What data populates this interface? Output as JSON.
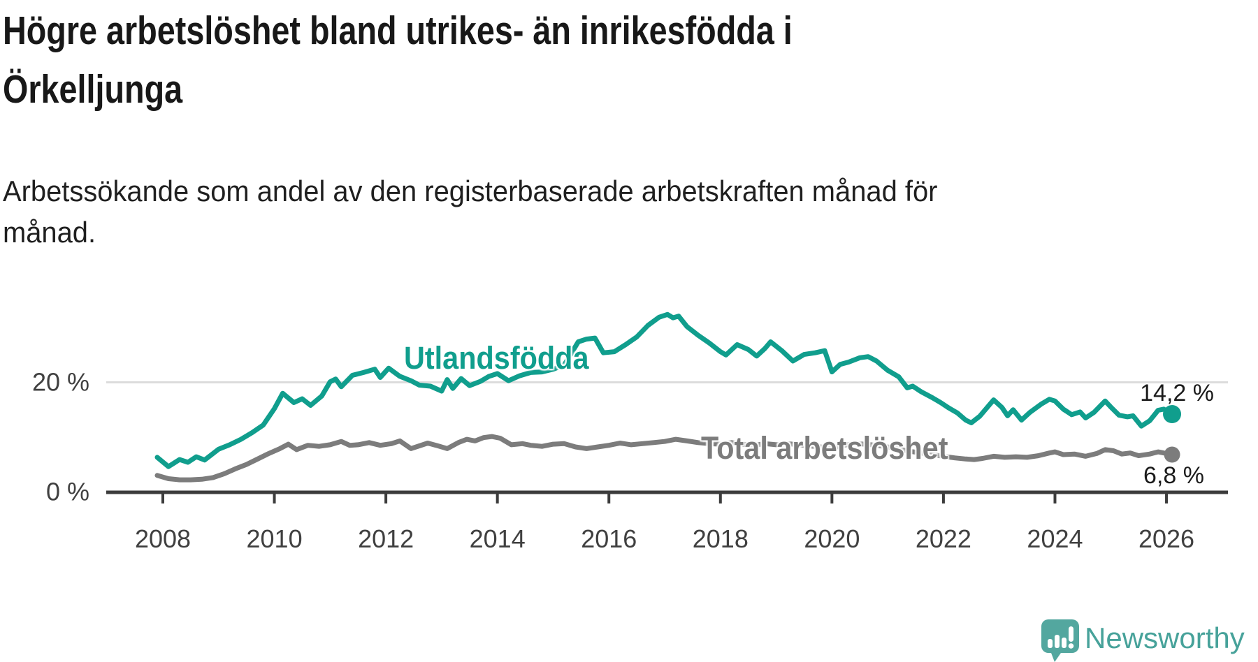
{
  "header": {
    "title_lines": [
      "Högre arbetslöshet bland utrikes- än inrikesfödda i",
      "Örkelljunga"
    ],
    "subtitle_lines": [
      "Arbetssökande som andel av den registerbaserade arbetskraften månad för",
      "månad."
    ]
  },
  "branding": {
    "logo_text": "Newsworthy",
    "logo_color": "#53A79F",
    "logo_text_color": "#47A29A"
  },
  "chart_data": {
    "type": "line",
    "title": "Högre arbetslöshet bland utrikes- än inrikesfödda i Örkelljunga",
    "subtitle": "Arbetssökande som andel av den registerbaserade arbetskraften månad för månad.",
    "xlabel": "",
    "ylabel": "",
    "unit": "%",
    "grid": "single-horizontal-at-20",
    "legend_position": "inline-labels",
    "x_axis": {
      "ticks": [
        2008,
        2010,
        2012,
        2014,
        2016,
        2018,
        2020,
        2022,
        2024,
        2026
      ],
      "range": [
        2007.9,
        2027.1
      ]
    },
    "y_axis": {
      "tick_labels": [
        "0 %",
        "20 %"
      ],
      "tick_values": [
        0,
        20
      ],
      "grid_value": 20,
      "range": [
        0,
        34
      ]
    },
    "colors": {
      "accent_teal": "#109E8D",
      "gray": "#7C7C7C",
      "axis": "#3C3C3C",
      "gridline": "#DCDCDC"
    },
    "series": [
      {
        "name": "Utlandsfödda",
        "color": "#109E8D",
        "end_label": "14,2 %",
        "end_value": 14.2,
        "points": [
          [
            2007.9,
            6.3
          ],
          [
            2008.1,
            4.6
          ],
          [
            2008.3,
            5.9
          ],
          [
            2008.45,
            5.4
          ],
          [
            2008.6,
            6.4
          ],
          [
            2008.75,
            5.8
          ],
          [
            2009.0,
            7.8
          ],
          [
            2009.2,
            8.6
          ],
          [
            2009.4,
            9.6
          ],
          [
            2009.6,
            10.8
          ],
          [
            2009.8,
            12.2
          ],
          [
            2010.0,
            15.2
          ],
          [
            2010.15,
            18.0
          ],
          [
            2010.35,
            16.3
          ],
          [
            2010.5,
            17.0
          ],
          [
            2010.65,
            15.8
          ],
          [
            2010.85,
            17.5
          ],
          [
            2011.0,
            20.1
          ],
          [
            2011.1,
            20.6
          ],
          [
            2011.2,
            19.2
          ],
          [
            2011.4,
            21.3
          ],
          [
            2011.6,
            21.8
          ],
          [
            2011.8,
            22.4
          ],
          [
            2011.9,
            20.9
          ],
          [
            2012.05,
            22.6
          ],
          [
            2012.25,
            21.1
          ],
          [
            2012.45,
            20.3
          ],
          [
            2012.6,
            19.5
          ],
          [
            2012.8,
            19.3
          ],
          [
            2013.0,
            18.4
          ],
          [
            2013.1,
            20.5
          ],
          [
            2013.2,
            18.9
          ],
          [
            2013.35,
            20.7
          ],
          [
            2013.5,
            19.4
          ],
          [
            2013.7,
            20.2
          ],
          [
            2013.85,
            21.1
          ],
          [
            2014.0,
            21.6
          ],
          [
            2014.2,
            20.3
          ],
          [
            2014.4,
            21.2
          ],
          [
            2014.6,
            21.8
          ],
          [
            2014.8,
            21.9
          ],
          [
            2015.0,
            22.4
          ],
          [
            2015.2,
            23.2
          ],
          [
            2015.45,
            27.4
          ],
          [
            2015.6,
            27.9
          ],
          [
            2015.75,
            28.1
          ],
          [
            2015.9,
            25.4
          ],
          [
            2016.1,
            25.6
          ],
          [
            2016.3,
            26.9
          ],
          [
            2016.5,
            28.3
          ],
          [
            2016.7,
            30.4
          ],
          [
            2016.9,
            31.9
          ],
          [
            2017.05,
            32.4
          ],
          [
            2017.15,
            31.8
          ],
          [
            2017.25,
            32.1
          ],
          [
            2017.4,
            30.2
          ],
          [
            2017.6,
            28.6
          ],
          [
            2017.8,
            27.2
          ],
          [
            2018.0,
            25.6
          ],
          [
            2018.1,
            25.0
          ],
          [
            2018.3,
            26.9
          ],
          [
            2018.5,
            26.0
          ],
          [
            2018.65,
            24.8
          ],
          [
            2018.8,
            26.2
          ],
          [
            2018.9,
            27.4
          ],
          [
            2019.1,
            25.8
          ],
          [
            2019.3,
            23.9
          ],
          [
            2019.5,
            25.1
          ],
          [
            2019.7,
            25.4
          ],
          [
            2019.87,
            25.8
          ],
          [
            2020.0,
            21.9
          ],
          [
            2020.15,
            23.3
          ],
          [
            2020.3,
            23.7
          ],
          [
            2020.5,
            24.5
          ],
          [
            2020.65,
            24.7
          ],
          [
            2020.8,
            23.9
          ],
          [
            2021.0,
            22.2
          ],
          [
            2021.2,
            21.0
          ],
          [
            2021.35,
            19.0
          ],
          [
            2021.45,
            19.3
          ],
          [
            2021.6,
            18.3
          ],
          [
            2021.8,
            17.2
          ],
          [
            2021.95,
            16.3
          ],
          [
            2022.1,
            15.3
          ],
          [
            2022.25,
            14.4
          ],
          [
            2022.4,
            13.1
          ],
          [
            2022.5,
            12.6
          ],
          [
            2022.65,
            13.8
          ],
          [
            2022.9,
            16.8
          ],
          [
            2023.05,
            15.4
          ],
          [
            2023.15,
            13.9
          ],
          [
            2023.25,
            15.0
          ],
          [
            2023.4,
            13.1
          ],
          [
            2023.55,
            14.5
          ],
          [
            2023.75,
            16.0
          ],
          [
            2023.9,
            16.9
          ],
          [
            2024.0,
            16.6
          ],
          [
            2024.15,
            15.1
          ],
          [
            2024.3,
            14.1
          ],
          [
            2024.45,
            14.6
          ],
          [
            2024.55,
            13.5
          ],
          [
            2024.7,
            14.5
          ],
          [
            2024.9,
            16.6
          ],
          [
            2025.0,
            15.5
          ],
          [
            2025.15,
            14.0
          ],
          [
            2025.3,
            13.7
          ],
          [
            2025.4,
            13.9
          ],
          [
            2025.55,
            12.0
          ],
          [
            2025.7,
            13.0
          ],
          [
            2025.85,
            14.9
          ],
          [
            2025.95,
            15.1
          ],
          [
            2026.1,
            14.2
          ]
        ]
      },
      {
        "name": "Total arbetslöshet",
        "color": "#7C7C7C",
        "end_label": "6,8 %",
        "end_value": 6.8,
        "points": [
          [
            2007.9,
            3.0
          ],
          [
            2008.1,
            2.4
          ],
          [
            2008.3,
            2.2
          ],
          [
            2008.5,
            2.2
          ],
          [
            2008.7,
            2.3
          ],
          [
            2008.9,
            2.6
          ],
          [
            2009.1,
            3.3
          ],
          [
            2009.3,
            4.2
          ],
          [
            2009.5,
            5.0
          ],
          [
            2009.7,
            6.0
          ],
          [
            2009.9,
            7.0
          ],
          [
            2010.1,
            7.9
          ],
          [
            2010.25,
            8.7
          ],
          [
            2010.4,
            7.7
          ],
          [
            2010.6,
            8.5
          ],
          [
            2010.8,
            8.3
          ],
          [
            2011.0,
            8.6
          ],
          [
            2011.2,
            9.2
          ],
          [
            2011.35,
            8.5
          ],
          [
            2011.5,
            8.6
          ],
          [
            2011.7,
            9.0
          ],
          [
            2011.9,
            8.5
          ],
          [
            2012.1,
            8.8
          ],
          [
            2012.25,
            9.3
          ],
          [
            2012.45,
            7.9
          ],
          [
            2012.6,
            8.4
          ],
          [
            2012.75,
            8.9
          ],
          [
            2012.9,
            8.5
          ],
          [
            2013.1,
            7.9
          ],
          [
            2013.3,
            9.0
          ],
          [
            2013.45,
            9.6
          ],
          [
            2013.6,
            9.3
          ],
          [
            2013.75,
            9.9
          ],
          [
            2013.9,
            10.1
          ],
          [
            2014.05,
            9.8
          ],
          [
            2014.25,
            8.6
          ],
          [
            2014.45,
            8.8
          ],
          [
            2014.6,
            8.5
          ],
          [
            2014.8,
            8.3
          ],
          [
            2015.0,
            8.7
          ],
          [
            2015.2,
            8.8
          ],
          [
            2015.4,
            8.2
          ],
          [
            2015.6,
            7.9
          ],
          [
            2015.8,
            8.2
          ],
          [
            2016.0,
            8.5
          ],
          [
            2016.2,
            8.9
          ],
          [
            2016.4,
            8.6
          ],
          [
            2016.6,
            8.8
          ],
          [
            2016.8,
            9.0
          ],
          [
            2017.0,
            9.2
          ],
          [
            2017.2,
            9.6
          ],
          [
            2017.4,
            9.3
          ],
          [
            2017.6,
            9.0
          ],
          [
            2017.8,
            8.8
          ],
          [
            2018.0,
            8.7
          ],
          [
            2018.2,
            9.0
          ],
          [
            2018.4,
            8.7
          ],
          [
            2018.6,
            8.5
          ],
          [
            2018.8,
            8.8
          ],
          [
            2019.0,
            8.6
          ],
          [
            2019.2,
            8.8
          ],
          [
            2019.4,
            8.6
          ],
          [
            2019.6,
            8.4
          ],
          [
            2019.8,
            8.2
          ],
          [
            2020.0,
            8.0
          ],
          [
            2020.2,
            8.5
          ],
          [
            2020.4,
            8.8
          ],
          [
            2020.6,
            8.7
          ],
          [
            2020.8,
            8.5
          ],
          [
            2021.0,
            8.2
          ],
          [
            2021.2,
            7.8
          ],
          [
            2021.4,
            7.4
          ],
          [
            2021.6,
            7.1
          ],
          [
            2021.8,
            6.8
          ],
          [
            2022.0,
            6.5
          ],
          [
            2022.2,
            6.2
          ],
          [
            2022.4,
            6.0
          ],
          [
            2022.55,
            5.9
          ],
          [
            2022.7,
            6.1
          ],
          [
            2022.9,
            6.5
          ],
          [
            2023.1,
            6.3
          ],
          [
            2023.3,
            6.4
          ],
          [
            2023.5,
            6.3
          ],
          [
            2023.7,
            6.6
          ],
          [
            2023.9,
            7.1
          ],
          [
            2024.0,
            7.3
          ],
          [
            2024.15,
            6.8
          ],
          [
            2024.35,
            6.9
          ],
          [
            2024.55,
            6.5
          ],
          [
            2024.75,
            7.0
          ],
          [
            2024.9,
            7.7
          ],
          [
            2025.05,
            7.5
          ],
          [
            2025.2,
            6.9
          ],
          [
            2025.35,
            7.1
          ],
          [
            2025.5,
            6.6
          ],
          [
            2025.7,
            6.9
          ],
          [
            2025.85,
            7.3
          ],
          [
            2026.1,
            6.8
          ]
        ]
      }
    ]
  }
}
